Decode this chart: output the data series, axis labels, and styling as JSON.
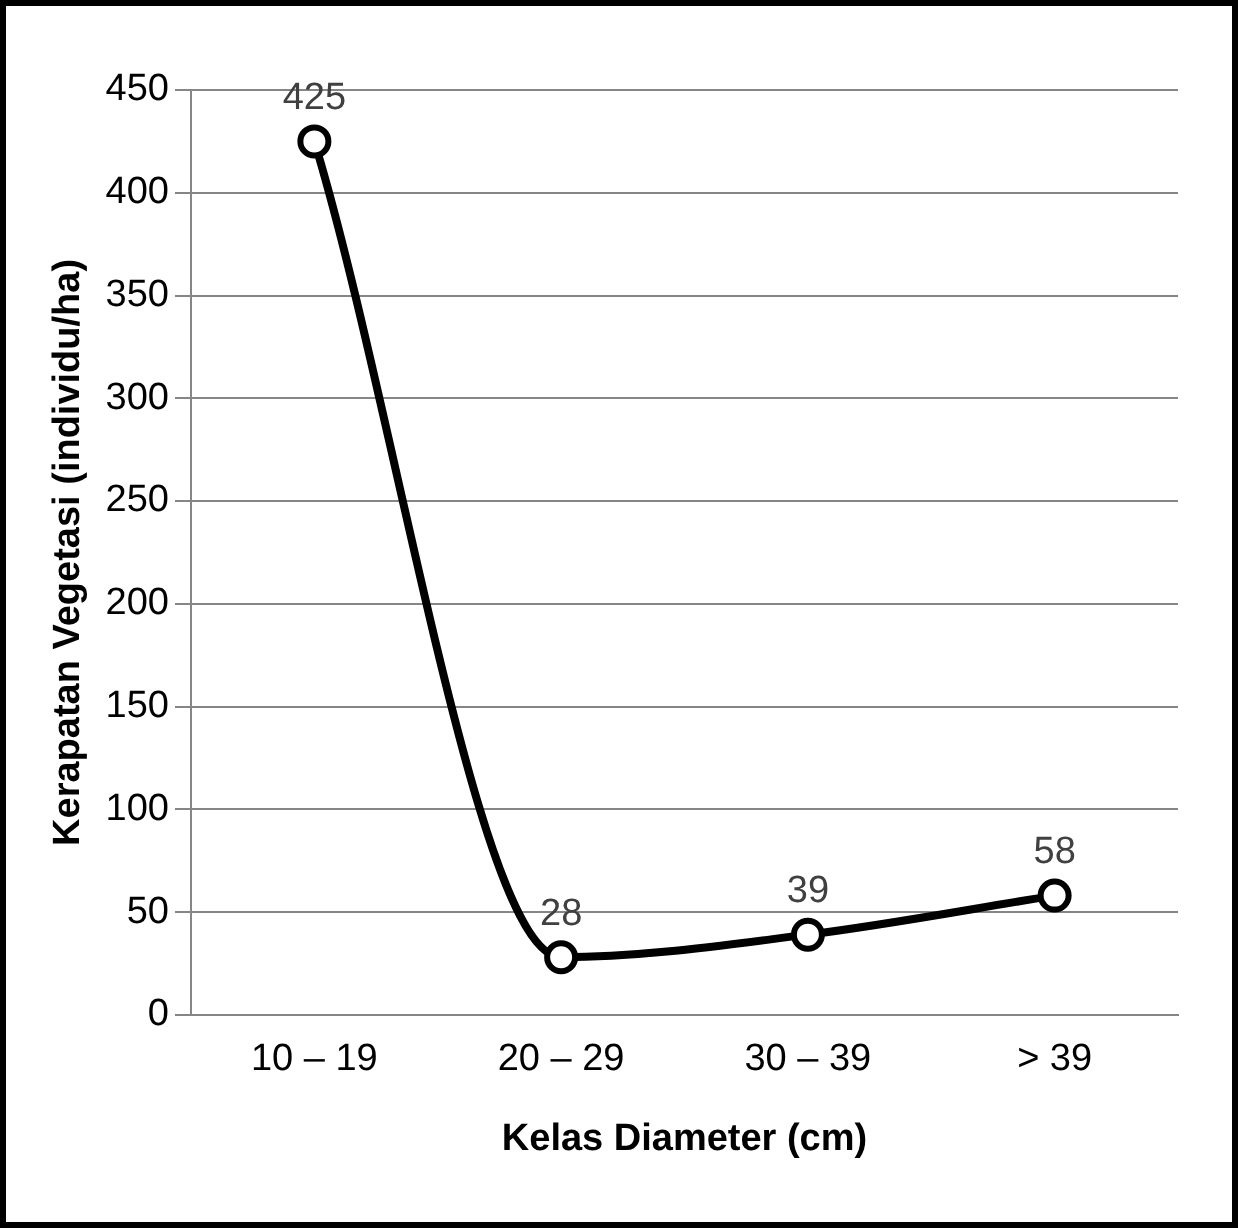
{
  "chart_data": {
    "type": "line",
    "xlabel": "Kelas Diameter (cm)",
    "ylabel": "Kerapatan Vegetasi (individu/ha)",
    "categories": [
      "10 – 19",
      "20 – 29",
      "30 – 39",
      "> 39"
    ],
    "series": [
      {
        "color": "#000000",
        "values": [
          425,
          28,
          39,
          58
        ]
      }
    ],
    "ylim": [
      0,
      450
    ],
    "yticks": [
      0,
      50,
      100,
      150,
      200,
      250,
      300,
      350,
      400,
      450
    ],
    "grid": "y",
    "legend": false,
    "marker": "circle",
    "line_style": "solid",
    "data_labels": true
  }
}
